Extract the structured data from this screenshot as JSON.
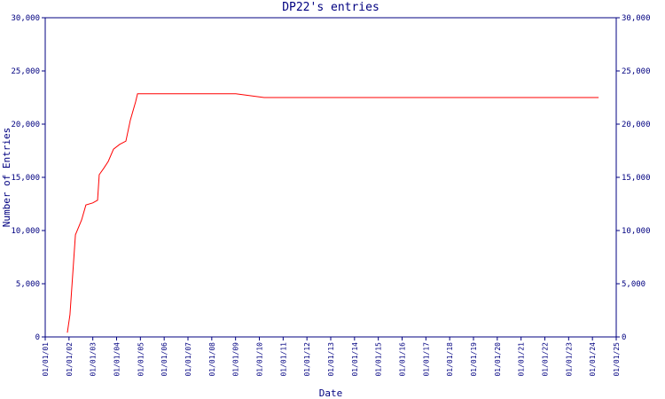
{
  "chart_data": {
    "type": "line",
    "title": "DP22's entries",
    "xlabel": "Date",
    "ylabel": "Number of Entries",
    "x": [
      2001.93,
      2002.04,
      2002.27,
      2002.53,
      2002.71,
      2003.0,
      2003.2,
      2003.27,
      2003.46,
      2003.65,
      2003.87,
      2004.13,
      2004.39,
      2004.58,
      2004.8,
      2004.88,
      2009.01,
      2010.2,
      2024.26
    ],
    "series": [
      {
        "name": "DP22",
        "color": "#ff0000",
        "values": [
          400,
          2100,
          9600,
          11000,
          12400,
          12600,
          12850,
          15250,
          15850,
          16500,
          17650,
          18100,
          18400,
          20400,
          22100,
          22850,
          22850,
          22500,
          22500
        ]
      }
    ],
    "xlim": [
      2001,
      2025
    ],
    "xticks": [
      {
        "value": 2001,
        "label": "01/01/01"
      },
      {
        "value": 2002,
        "label": "01/01/02"
      },
      {
        "value": 2003,
        "label": "01/01/03"
      },
      {
        "value": 2004,
        "label": "01/01/04"
      },
      {
        "value": 2005,
        "label": "01/01/05"
      },
      {
        "value": 2006,
        "label": "01/01/06"
      },
      {
        "value": 2007,
        "label": "01/01/07"
      },
      {
        "value": 2008,
        "label": "01/01/08"
      },
      {
        "value": 2009,
        "label": "01/01/09"
      },
      {
        "value": 2010,
        "label": "01/01/10"
      },
      {
        "value": 2011,
        "label": "01/01/11"
      },
      {
        "value": 2012,
        "label": "01/01/12"
      },
      {
        "value": 2013,
        "label": "01/01/13"
      },
      {
        "value": 2014,
        "label": "01/01/14"
      },
      {
        "value": 2015,
        "label": "01/01/15"
      },
      {
        "value": 2016,
        "label": "01/01/16"
      },
      {
        "value": 2017,
        "label": "01/01/17"
      },
      {
        "value": 2018,
        "label": "01/01/18"
      },
      {
        "value": 2019,
        "label": "01/01/19"
      },
      {
        "value": 2020,
        "label": "01/01/20"
      },
      {
        "value": 2021,
        "label": "01/01/21"
      },
      {
        "value": 2022,
        "label": "01/01/22"
      },
      {
        "value": 2023,
        "label": "01/01/23"
      },
      {
        "value": 2024,
        "label": "01/01/24"
      },
      {
        "value": 2025,
        "label": "01/01/25"
      }
    ],
    "ylim": [
      0,
      30000
    ],
    "yticks": [
      0,
      {
        "value": 5000,
        "label": "5,000"
      },
      {
        "value": 10000,
        "label": "10,000"
      },
      {
        "value": 15000,
        "label": "15,000"
      },
      {
        "value": 20000,
        "label": "20,000"
      },
      {
        "value": 25000,
        "label": "25,000"
      },
      {
        "value": 30000,
        "label": "30,000"
      }
    ],
    "grid": false
  }
}
